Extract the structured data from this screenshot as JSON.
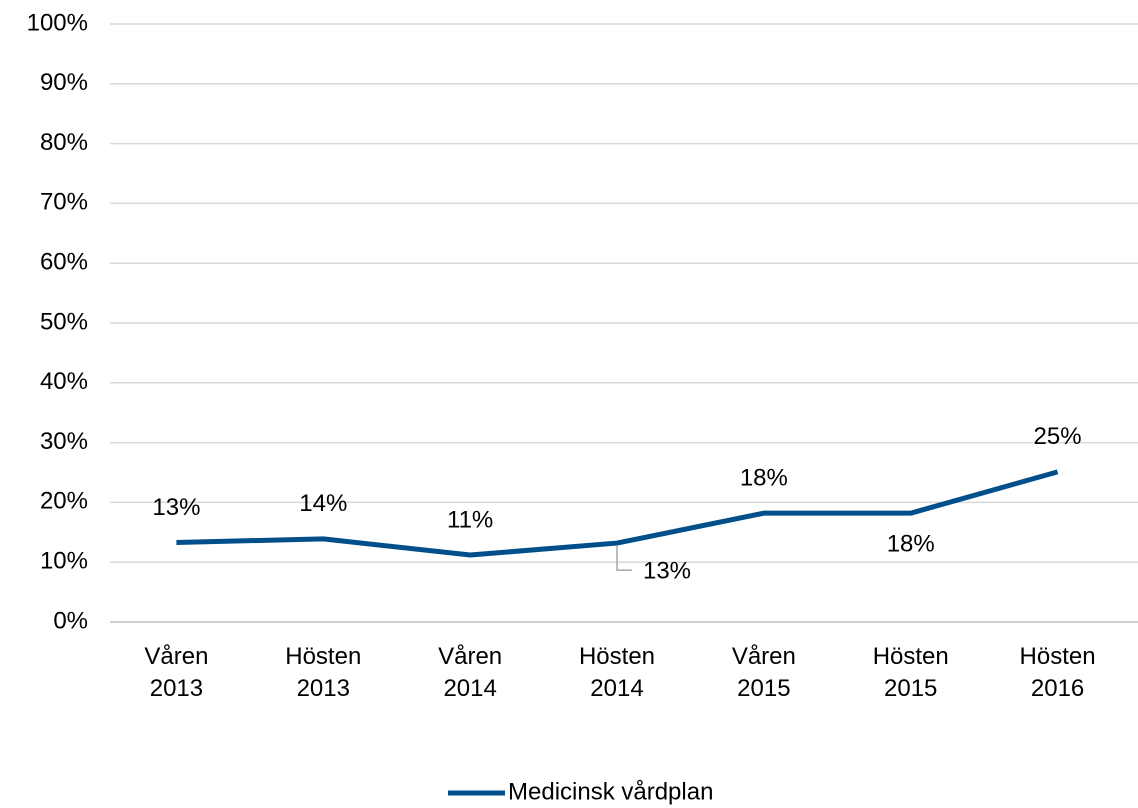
{
  "chart_data": {
    "type": "line",
    "categories": [
      "Våren 2013",
      "Hösten 2013",
      "Våren 2014",
      "Hösten 2014",
      "Våren 2015",
      "Hösten 2015",
      "Hösten 2016"
    ],
    "series": [
      {
        "name": "Medicinsk vårdplan",
        "color": "#004f8b",
        "values": [
          13.3,
          13.9,
          11.2,
          13.2,
          18.2,
          18.2,
          25.1
        ],
        "value_labels": [
          "13%",
          "14%",
          "11%",
          "13%",
          "18%",
          "18%",
          "25%"
        ]
      }
    ],
    "ylim": [
      0,
      100
    ],
    "yticks": [
      {
        "value": 0,
        "label": "0%"
      },
      {
        "value": 10,
        "label": "10%"
      },
      {
        "value": 20,
        "label": "20%"
      },
      {
        "value": 30,
        "label": "30%"
      },
      {
        "value": 40,
        "label": "40%"
      },
      {
        "value": 50,
        "label": "50%"
      },
      {
        "value": 60,
        "label": "60%"
      },
      {
        "value": 70,
        "label": "70%"
      },
      {
        "value": 80,
        "label": "80%"
      },
      {
        "value": 90,
        "label": "90%"
      },
      {
        "value": 100,
        "label": "100%"
      }
    ],
    "grid": true,
    "legend": "bottom"
  }
}
